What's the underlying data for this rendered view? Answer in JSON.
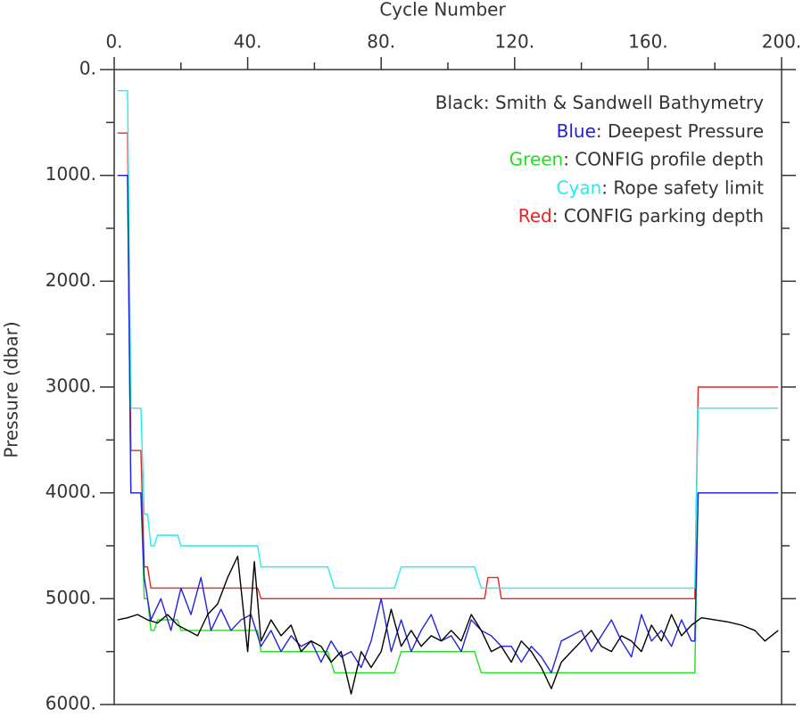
{
  "chart_data": {
    "type": "line",
    "xlabel": "Cycle Number",
    "ylabel": "Pressure (dbar)",
    "xlim": [
      0,
      200
    ],
    "xticks": [
      {
        "value": 0,
        "label": "0."
      },
      {
        "value": 40,
        "label": "40."
      },
      {
        "value": 80,
        "label": "80."
      },
      {
        "value": 120,
        "label": "120."
      },
      {
        "value": 160,
        "label": "160."
      },
      {
        "value": 200,
        "label": "200."
      }
    ],
    "xminorticks": [
      20,
      60,
      100,
      140,
      180
    ],
    "ylim": [
      0,
      6000
    ],
    "yinverted": true,
    "yticks": [
      {
        "value": 0,
        "label": "0."
      },
      {
        "value": 1000,
        "label": "1000."
      },
      {
        "value": 2000,
        "label": "2000."
      },
      {
        "value": 3000,
        "label": "3000."
      },
      {
        "value": 4000,
        "label": "4000."
      },
      {
        "value": 5000,
        "label": "5000."
      },
      {
        "value": 6000,
        "label": "6000."
      }
    ],
    "yminorticks": [
      500,
      1500,
      2500,
      3500,
      4500,
      5500
    ],
    "series": [
      {
        "legend_key": "Black:",
        "name": "Smith & Sandwell Bathymetry",
        "color": "#000000",
        "x": [
          1,
          4,
          7,
          10,
          13,
          16,
          19,
          22,
          25,
          28,
          31,
          34,
          37,
          40,
          42,
          44,
          47,
          50,
          53,
          56,
          59,
          62,
          65,
          68,
          71,
          74,
          77,
          80,
          83,
          86,
          89,
          92,
          95,
          98,
          101,
          104,
          107,
          110,
          113,
          116,
          119,
          122,
          125,
          128,
          131,
          134,
          137,
          140,
          143,
          146,
          149,
          152,
          155,
          158,
          161,
          164,
          167,
          170,
          173,
          176,
          180,
          184,
          188,
          192,
          195,
          199
        ],
        "values": [
          5200,
          5180,
          5150,
          5200,
          5230,
          5150,
          5250,
          5300,
          5350,
          5150,
          5050,
          4800,
          4600,
          5500,
          4650,
          5400,
          5200,
          5350,
          5250,
          5500,
          5400,
          5450,
          5600,
          5500,
          5900,
          5500,
          5650,
          5500,
          5100,
          5450,
          5300,
          5450,
          5350,
          5400,
          5300,
          5400,
          5150,
          5300,
          5500,
          5450,
          5600,
          5400,
          5500,
          5650,
          5850,
          5600,
          5500,
          5400,
          5300,
          5450,
          5500,
          5350,
          5400,
          5500,
          5250,
          5400,
          5150,
          5350,
          5250,
          5180,
          5200,
          5220,
          5250,
          5300,
          5400,
          5300
        ]
      },
      {
        "legend_key": "Blue",
        "name": ": Deepest Pressure",
        "color": "#2222dd",
        "x": [
          1,
          4,
          5,
          8,
          9,
          11,
          14,
          17,
          20,
          23,
          26,
          29,
          32,
          35,
          38,
          41,
          44,
          47,
          50,
          53,
          56,
          59,
          62,
          65,
          68,
          71,
          74,
          77,
          80,
          83,
          86,
          89,
          92,
          95,
          98,
          101,
          104,
          107,
          110,
          113,
          116,
          119,
          122,
          125,
          128,
          131,
          134,
          137,
          140,
          143,
          146,
          149,
          152,
          155,
          158,
          161,
          164,
          167,
          170,
          173,
          174,
          175,
          199
        ],
        "values": [
          1000,
          1000,
          4000,
          4000,
          4800,
          5200,
          5000,
          5300,
          4900,
          5150,
          4800,
          5300,
          5100,
          5300,
          5200,
          5150,
          5450,
          5300,
          5500,
          5350,
          5450,
          5400,
          5600,
          5400,
          5550,
          5500,
          5650,
          5400,
          5000,
          5500,
          5200,
          5500,
          5300,
          5150,
          5400,
          5350,
          5500,
          5200,
          5300,
          5350,
          5450,
          5450,
          5600,
          5450,
          5550,
          5700,
          5400,
          5350,
          5300,
          5500,
          5350,
          5200,
          5400,
          5550,
          5150,
          5400,
          5300,
          5450,
          5200,
          5400,
          5400,
          4000,
          4000
        ]
      },
      {
        "legend_key": "Green",
        "name": ": CONFIG profile depth",
        "color": "#22dd22",
        "x": [
          1,
          4,
          5,
          8,
          9,
          10,
          11,
          12,
          13,
          19,
          20,
          43,
          44,
          64,
          66,
          84,
          86,
          108,
          110,
          174,
          175,
          199
        ],
        "values": [
          1000,
          1000,
          4000,
          4000,
          5000,
          5000,
          5300,
          5300,
          5200,
          5200,
          5300,
          5300,
          5500,
          5500,
          5700,
          5700,
          5500,
          5500,
          5700,
          5700,
          4000,
          4000
        ]
      },
      {
        "legend_key": "Cyan",
        "name": ": Rope safety limit",
        "color": "#22eeee",
        "x": [
          1,
          4,
          5,
          8,
          9,
          10,
          11,
          12,
          13,
          19,
          20,
          43,
          44,
          64,
          66,
          84,
          86,
          108,
          110,
          174,
          175,
          199
        ],
        "values": [
          200,
          200,
          3200,
          3200,
          4200,
          4200,
          4500,
          4500,
          4400,
          4400,
          4500,
          4500,
          4700,
          4700,
          4900,
          4900,
          4700,
          4700,
          4900,
          4900,
          3200,
          3200
        ]
      },
      {
        "legend_key": "Red",
        "name": ": CONFIG parking depth",
        "color": "#ee2222",
        "x": [
          1,
          4,
          5,
          8,
          9,
          10,
          11,
          43,
          44,
          111,
          112,
          115,
          116,
          174,
          175,
          199
        ],
        "values": [
          600,
          600,
          3600,
          3600,
          4700,
          4700,
          4900,
          4900,
          5000,
          5000,
          4800,
          4800,
          5000,
          5000,
          3000,
          3000
        ]
      }
    ]
  }
}
